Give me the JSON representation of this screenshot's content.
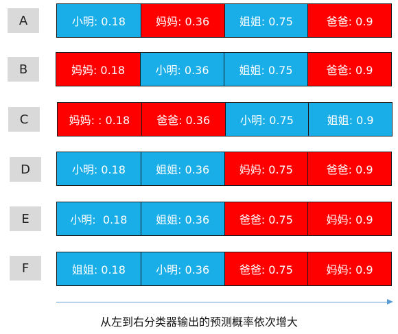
{
  "colors": {
    "blue": "#1aaee8",
    "red": "#ff0000",
    "tag_bg": "#d9d9d9",
    "arrow": "#5b9bd5"
  },
  "rows": [
    {
      "label": "A",
      "cells": [
        {
          "text": "小明: 0.18",
          "color": "blue"
        },
        {
          "text": "妈妈: 0.36",
          "color": "red"
        },
        {
          "text": "姐姐: 0.75",
          "color": "blue"
        },
        {
          "text": "爸爸: 0.9",
          "color": "red"
        }
      ]
    },
    {
      "label": "B",
      "cells": [
        {
          "text": "妈妈: 0.18",
          "color": "red"
        },
        {
          "text": "小明: 0.36",
          "color": "blue"
        },
        {
          "text": "姐姐: 0.75",
          "color": "blue"
        },
        {
          "text": "爸爸: 0.9",
          "color": "red"
        }
      ]
    },
    {
      "label": "C",
      "cells": [
        {
          "text": "妈妈: : 0.18",
          "color": "red"
        },
        {
          "text": "爸爸: 0.36",
          "color": "red"
        },
        {
          "text": "小明: 0.75",
          "color": "blue"
        },
        {
          "text": "姐姐: 0.9",
          "color": "blue"
        }
      ]
    },
    {
      "label": "D",
      "cells": [
        {
          "text": "小明: 0.18",
          "color": "blue"
        },
        {
          "text": "姐姐: 0.36",
          "color": "blue"
        },
        {
          "text": "妈妈: 0.75",
          "color": "red"
        },
        {
          "text": "爸爸: 0.9",
          "color": "red"
        }
      ]
    },
    {
      "label": "E",
      "cells": [
        {
          "text": "小明:  0.18",
          "color": "blue"
        },
        {
          "text": "姐姐: 0.36",
          "color": "blue"
        },
        {
          "text": "爸爸: 0.75",
          "color": "red"
        },
        {
          "text": "妈妈: 0.9",
          "color": "red"
        }
      ]
    },
    {
      "label": "F",
      "cells": [
        {
          "text": "姐姐: 0.18",
          "color": "blue"
        },
        {
          "text": "小明: 0.36",
          "color": "blue"
        },
        {
          "text": "爸爸: 0.75",
          "color": "red"
        },
        {
          "text": "妈妈: 0.9",
          "color": "red"
        }
      ]
    }
  ],
  "caption": "从左到右分类器输出的预测概率依次增大"
}
